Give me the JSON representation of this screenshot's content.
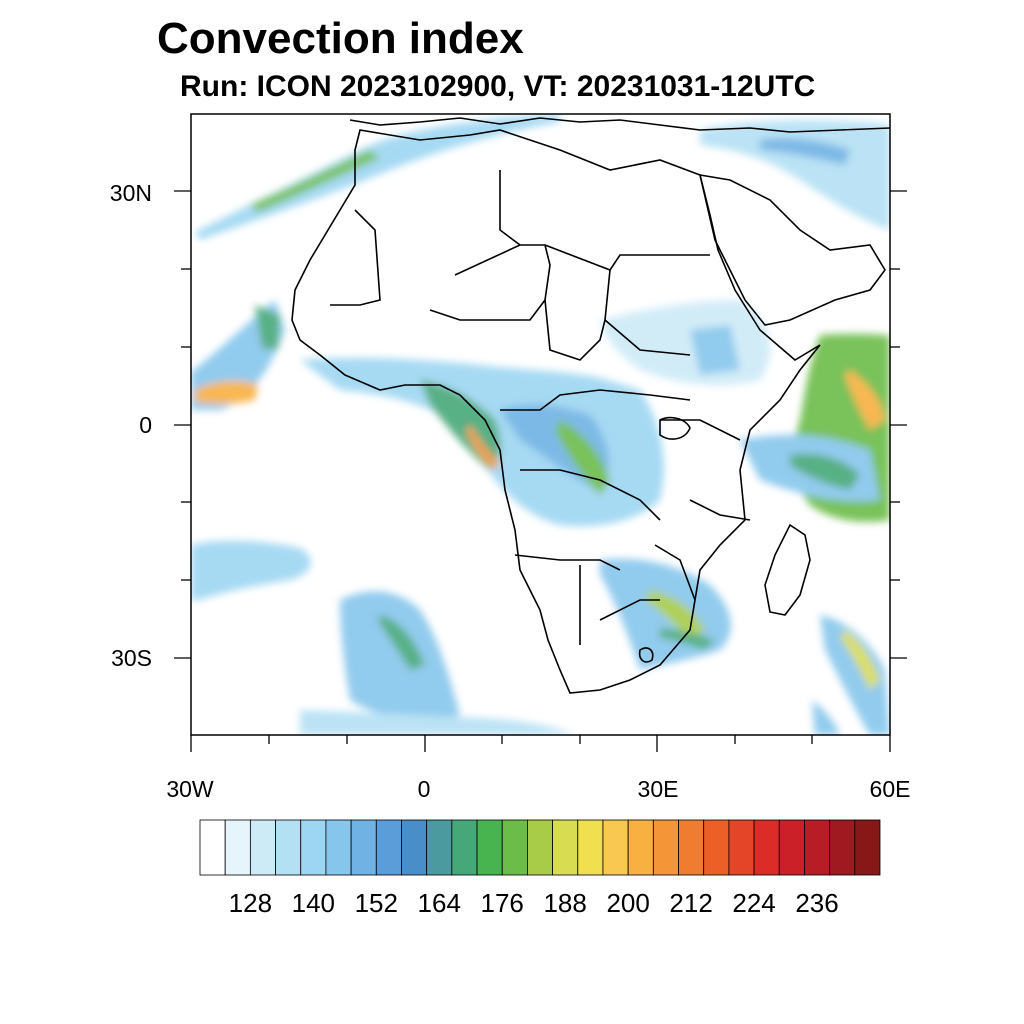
{
  "title": "Convection index",
  "subtitle": "Run: ICON 2023102900,  VT: 20231031-12UTC",
  "map": {
    "lat_range": [
      -40,
      40
    ],
    "lon_range": [
      -30,
      60
    ],
    "lat_ticks": [
      {
        "value": 30,
        "label": "30N"
      },
      {
        "value": 0,
        "label": "0"
      },
      {
        "value": -30,
        "label": "30S"
      }
    ],
    "lon_ticks": [
      {
        "value": -30,
        "label": "30W"
      },
      {
        "value": 0,
        "label": "0"
      },
      {
        "value": 30,
        "label": "30E"
      },
      {
        "value": 60,
        "label": "60E"
      }
    ]
  },
  "colorbar": {
    "colors": [
      "#ffffff",
      "#e6f4fb",
      "#cdeaf7",
      "#b4e0f4",
      "#9dd6f2",
      "#86c6ec",
      "#70b2e4",
      "#5a9dd8",
      "#4a8ec9",
      "#4a9aa0",
      "#46a878",
      "#48b450",
      "#6cbc4a",
      "#a8cc48",
      "#d8dc50",
      "#f0e050",
      "#f8c850",
      "#f8b040",
      "#f49638",
      "#f07c30",
      "#ec6028",
      "#e44428",
      "#dc2c28",
      "#cc2028",
      "#b81c24",
      "#a01820",
      "#881818"
    ],
    "labels": [
      "128",
      "140",
      "152",
      "164",
      "176",
      "188",
      "200",
      "212",
      "224",
      "236"
    ]
  }
}
